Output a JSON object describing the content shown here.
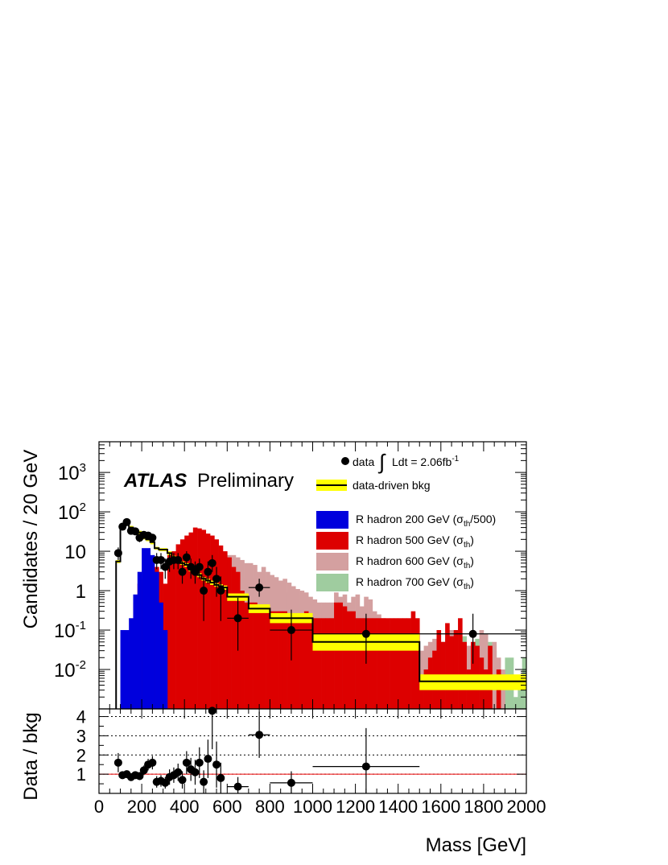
{
  "chart_data": [
    {
      "type": "histogram",
      "ylabel": "Candidates / 20 GeV",
      "yscale": "log",
      "ylim": [
        0.001,
        6000
      ],
      "xlim": [
        0,
        2000
      ],
      "yticks": [
        {
          "value": 0.01,
          "base": "10",
          "exp": "-2"
        },
        {
          "value": 0.1,
          "base": "10",
          "exp": "-1"
        },
        {
          "value": 1,
          "base": "1",
          "exp": ""
        },
        {
          "value": 10,
          "base": "10",
          "exp": ""
        },
        {
          "value": 100,
          "base": "10",
          "exp": "2"
        },
        {
          "value": 1000,
          "base": "10",
          "exp": "3"
        }
      ],
      "atlas_label": "ATLAS",
      "atlas_sublabel": "Preliminary",
      "legend": {
        "placement": "top-right",
        "data_label": "data",
        "lumi_prefix": "Ldt = 2.06fb",
        "lumi_exp": "-1",
        "bkg_label": "data-driven bkg",
        "signals": [
          {
            "pre": "R hadron 200 GeV (σ",
            "sub": "th",
            "post": "/500)"
          },
          {
            "pre": "R hadron 500 GeV (σ",
            "sub": "th",
            "post": ")"
          },
          {
            "pre": "R hadron 600 GeV (σ",
            "sub": "th",
            "post": ")"
          },
          {
            "pre": "R hadron 700 GeV (σ",
            "sub": "th",
            "post": ")"
          }
        ]
      },
      "colors": {
        "sig200": "#0000dd",
        "sig500": "#dd0000",
        "sig600": "#d4a0a0",
        "sig700": "#9fcc9f",
        "band": "#ffff00",
        "bkg": "#000000"
      },
      "bin_width": 20,
      "signal_edges_start": 100,
      "series": [
        {
          "name": "R hadron 700 GeV (σth)",
          "edges_start": 100,
          "values": [
            0.025,
            0.09,
            0.06,
            0.15,
            0.3,
            0.6,
            0.005,
            0.8,
            0.3,
            0.2,
            0.9,
            0.6,
            0.4,
            0.8,
            1.5,
            0.7,
            1.0,
            1.6,
            0.9,
            1.2,
            2.0,
            1.3,
            0.7,
            1.8,
            2.0,
            2.2,
            1.6,
            2.0,
            2.2,
            1.8,
            2.1,
            1.5,
            1.6,
            1.2,
            1.4,
            1.0,
            1.2,
            0.8,
            0.9,
            0.9,
            0.7,
            0.8,
            0.5,
            0.6,
            0.4,
            0.5,
            0.35,
            0.4,
            0.3,
            0.3,
            0.25,
            0.22,
            0.2,
            0.2,
            0.15,
            0.15,
            0.12,
            0.12,
            0.1,
            0.1,
            0.08,
            0.08,
            0.06,
            0.07,
            0.05,
            0.05,
            0.04,
            0.04,
            0.03,
            0.03,
            0.002,
            0.002,
            0.002,
            0.05,
            0.002,
            0.05,
            0.06,
            0.002,
            0.04,
            0.05,
            0.07,
            0.002,
            0.05,
            0.06,
            0.002,
            0.04,
            0.05,
            0.03,
            0.002,
            0.005,
            0.02,
            0.02,
            0.002,
            0.005,
            0.02,
            0.002
          ]
        },
        {
          "name": "R hadron 600 GeV (σth)",
          "edges_start": 100,
          "values": [
            0,
            0,
            0,
            0.1,
            0.5,
            1.5,
            0.01,
            3,
            0.5,
            0.8,
            1.5,
            0.5,
            0.5,
            2,
            3,
            1,
            2,
            4,
            3,
            6,
            8,
            7,
            8,
            8,
            9,
            8,
            8,
            7,
            6,
            5,
            5,
            4.5,
            3,
            4,
            3,
            2.5,
            2.2,
            1.8,
            2,
            1.6,
            1.3,
            1.1,
            1.0,
            0.9,
            0.7,
            0.6,
            0.5,
            0.5,
            0.5,
            0.5,
            0.9,
            0.7,
            0.8,
            0.5,
            0.7,
            0.8,
            0.4,
            0.7,
            0.6,
            0.3,
            0.25,
            0.2,
            0.15,
            0.12,
            0.1,
            0.08,
            0.07,
            0.06,
            0.05,
            0.04,
            0.03,
            0.04,
            0.05,
            0.06,
            0.07,
            0.05,
            0.04,
            0.1,
            0.06,
            0.05,
            0.05,
            0.04,
            0.03,
            0.03,
            0.1,
            0.08,
            0.04,
            0.05,
            0.02,
            0.01,
            0,
            0,
            0,
            0,
            0,
            0
          ]
        },
        {
          "name": "R hadron 500 GeV (σth)",
          "edges_start": 100,
          "values": [
            0,
            0,
            0.05,
            0.5,
            1.5,
            2,
            0.01,
            0.05,
            4,
            3,
            1.5,
            8,
            10,
            15,
            20,
            25,
            30,
            40,
            38,
            35,
            28,
            25,
            20,
            14,
            10,
            7,
            4,
            3,
            1,
            0.5,
            0.5,
            0.5,
            0.4,
            0.3,
            0.3,
            0.3,
            0.3,
            0.3,
            0.3,
            0.2,
            0.2,
            0.2,
            0.2,
            0.3,
            0.2,
            0.2,
            0.2,
            0.2,
            0.2,
            0.2,
            0.5,
            0.5,
            0.4,
            0.3,
            0.3,
            0.2,
            0.2,
            0.2,
            0.2,
            0.2,
            0.2,
            0.2,
            0.2,
            0.2,
            0.2,
            0.2,
            0.2,
            0.2,
            0.3,
            0.2,
            0.005,
            0.01,
            0.02,
            0.03,
            0.1,
            0.05,
            0.15,
            0.07,
            0.1,
            0.2,
            0.05,
            0.01,
            0.05,
            0.04,
            0.02,
            0.01,
            0.04,
            0.001,
            0.01,
            0,
            0,
            0,
            0,
            0,
            0,
            0
          ]
        },
        {
          "name": "R hadron 200 GeV (σth/500)",
          "edges_start": 100,
          "values": [
            0.1,
            0.1,
            0.2,
            0.8,
            3,
            12,
            12,
            8,
            3,
            0.5,
            0.1,
            0,
            0,
            0,
            0,
            0,
            0,
            0,
            0,
            0,
            0,
            0,
            0,
            0,
            0,
            0,
            0,
            0,
            0,
            0,
            0,
            0,
            0,
            0,
            0,
            0,
            0,
            0,
            0,
            0,
            0,
            0,
            0,
            0,
            0,
            0,
            0,
            0,
            0,
            0,
            0,
            0,
            0,
            0,
            0,
            0,
            0,
            0,
            0,
            0,
            0,
            0,
            0,
            0,
            0,
            0,
            0,
            0,
            0,
            0,
            0,
            0,
            0,
            0,
            0,
            0,
            0,
            0,
            0,
            0,
            0,
            0,
            0,
            0,
            0,
            0,
            0,
            0,
            0,
            0,
            0,
            0,
            0,
            0,
            0,
            0
          ]
        },
        {
          "name": "data-driven bkg",
          "edges": [
            80,
            100,
            120,
            140,
            160,
            180,
            200,
            220,
            240,
            260,
            280,
            300,
            320,
            340,
            360,
            380,
            400,
            420,
            440,
            460,
            480,
            500,
            520,
            540,
            560,
            580,
            600,
            700,
            800,
            1000,
            1500,
            2000
          ],
          "values": [
            5.5,
            40,
            50,
            40,
            35,
            30,
            22,
            20,
            17,
            12,
            11,
            11,
            9,
            7,
            6,
            5,
            4.5,
            3.5,
            3,
            2.5,
            2,
            1.8,
            1.6,
            1.4,
            1.3,
            1.2,
            0.7,
            0.35,
            0.2,
            0.05,
            0.005
          ],
          "band_low": [
            5,
            36,
            45,
            36,
            32,
            27,
            20,
            18,
            15,
            11,
            10,
            10,
            8,
            6.3,
            5.4,
            4.5,
            4.0,
            3.1,
            2.7,
            2.2,
            1.8,
            1.6,
            1.4,
            1.25,
            1.15,
            1.05,
            0.55,
            0.27,
            0.15,
            0.03,
            0.003
          ],
          "band_high": [
            6,
            44,
            55,
            44,
            38,
            33,
            24,
            22,
            19,
            13,
            12,
            12,
            10,
            7.7,
            6.6,
            5.5,
            5.0,
            3.9,
            3.3,
            2.8,
            2.2,
            2.0,
            1.8,
            1.55,
            1.45,
            1.35,
            0.85,
            0.45,
            0.27,
            0.08,
            0.0075
          ]
        },
        {
          "name": "data",
          "points": [
            {
              "x": 90,
              "y": 9,
              "yerr_lo": 3,
              "yerr_hi": 3.5
            },
            {
              "x": 110,
              "y": 42,
              "yerr_lo": 6,
              "yerr_hi": 7
            },
            {
              "x": 130,
              "y": 55,
              "yerr_lo": 7,
              "yerr_hi": 8
            },
            {
              "x": 150,
              "y": 33,
              "yerr_lo": 6,
              "yerr_hi": 6
            },
            {
              "x": 170,
              "y": 32,
              "yerr_lo": 6,
              "yerr_hi": 6
            },
            {
              "x": 190,
              "y": 22,
              "yerr_lo": 5,
              "yerr_hi": 5
            },
            {
              "x": 210,
              "y": 26,
              "yerr_lo": 5,
              "yerr_hi": 5
            },
            {
              "x": 230,
              "y": 25,
              "yerr_lo": 5,
              "yerr_hi": 5
            },
            {
              "x": 250,
              "y": 22,
              "yerr_lo": 5,
              "yerr_hi": 5
            },
            {
              "x": 270,
              "y": 6,
              "yerr_lo": 2.5,
              "yerr_hi": 3
            },
            {
              "x": 290,
              "y": 6,
              "yerr_lo": 2.5,
              "yerr_hi": 3
            },
            {
              "x": 310,
              "y": 4,
              "yerr_lo": 2,
              "yerr_hi": 2.5
            },
            {
              "x": 330,
              "y": 5.5,
              "yerr_lo": 2.5,
              "yerr_hi": 3
            },
            {
              "x": 350,
              "y": 6,
              "yerr_lo": 2.5,
              "yerr_hi": 3
            },
            {
              "x": 370,
              "y": 6,
              "yerr_lo": 2.5,
              "yerr_hi": 3
            },
            {
              "x": 390,
              "y": 3,
              "yerr_lo": 1.5,
              "yerr_hi": 2.5
            },
            {
              "x": 410,
              "y": 7,
              "yerr_lo": 2.5,
              "yerr_hi": 3
            },
            {
              "x": 430,
              "y": 4,
              "yerr_lo": 2,
              "yerr_hi": 2.5
            },
            {
              "x": 450,
              "y": 3,
              "yerr_lo": 1.5,
              "yerr_hi": 2.5
            },
            {
              "x": 470,
              "y": 4,
              "yerr_lo": 2,
              "yerr_hi": 2.5
            },
            {
              "x": 490,
              "y": 1,
              "yerr_lo": 0.83,
              "yerr_hi": 1.3
            },
            {
              "x": 510,
              "y": 3,
              "yerr_lo": 1.5,
              "yerr_hi": 2.5
            },
            {
              "x": 530,
              "y": 5,
              "yerr_lo": 2,
              "yerr_hi": 3
            },
            {
              "x": 550,
              "y": 2,
              "yerr_lo": 1.3,
              "yerr_hi": 2
            },
            {
              "x": 570,
              "y": 1,
              "yerr_lo": 0.83,
              "yerr_hi": 1.3
            },
            {
              "x": 650,
              "y": 0.2,
              "xerr": 50,
              "yerr_lo": 0.17,
              "yerr_hi": 0.46
            },
            {
              "x": 750,
              "y": 1.2,
              "xerr": 50,
              "yerr_lo": 0.5,
              "yerr_hi": 0.8
            },
            {
              "x": 900,
              "y": 0.1,
              "xerr": 100,
              "yerr_lo": 0.083,
              "yerr_hi": 0.23
            },
            {
              "x": 1250,
              "y": 0.08,
              "xerr": 250,
              "yerr_lo": 0.066,
              "yerr_hi": 0.18
            },
            {
              "x": 1750,
              "y": 0.08,
              "xerr": 250,
              "yerr_lo": 0.066,
              "yerr_hi": 0.18
            }
          ]
        }
      ]
    },
    {
      "type": "scatter",
      "ylabel": "Data / bkg",
      "xlabel": "Mass [GeV]",
      "xlim": [
        0,
        2000
      ],
      "ylim": [
        0,
        4.4
      ],
      "xticks": [
        "0",
        "200",
        "400",
        "600",
        "800",
        "1000",
        "1200",
        "1400",
        "1600",
        "1800",
        "2000"
      ],
      "yticks": [
        "1",
        "2",
        "3",
        "4"
      ],
      "gridlines": [
        1,
        2,
        3,
        4
      ],
      "reference_line": 1,
      "reference_color": "#ee0000",
      "points": [
        {
          "x": 90,
          "y": 1.6,
          "err": 0.5
        },
        {
          "x": 110,
          "y": 0.95,
          "err": 0.17
        },
        {
          "x": 130,
          "y": 1.0,
          "err": 0.15
        },
        {
          "x": 150,
          "y": 0.85,
          "err": 0.16
        },
        {
          "x": 170,
          "y": 0.95,
          "err": 0.18
        },
        {
          "x": 190,
          "y": 0.9,
          "err": 0.2
        },
        {
          "x": 210,
          "y": 1.2,
          "err": 0.25
        },
        {
          "x": 230,
          "y": 1.5,
          "err": 0.3
        },
        {
          "x": 250,
          "y": 1.6,
          "err": 0.35
        },
        {
          "x": 270,
          "y": 0.6,
          "err": 0.3
        },
        {
          "x": 290,
          "y": 0.65,
          "err": 0.3
        },
        {
          "x": 310,
          "y": 0.55,
          "err": 0.3
        },
        {
          "x": 330,
          "y": 0.85,
          "err": 0.4
        },
        {
          "x": 350,
          "y": 0.95,
          "err": 0.4
        },
        {
          "x": 370,
          "y": 1.1,
          "err": 0.45
        },
        {
          "x": 390,
          "y": 0.7,
          "err": 0.45
        },
        {
          "x": 410,
          "y": 1.6,
          "err": 0.6
        },
        {
          "x": 430,
          "y": 1.25,
          "err": 0.6
        },
        {
          "x": 450,
          "y": 1.1,
          "err": 0.65
        },
        {
          "x": 470,
          "y": 1.6,
          "err": 0.8
        },
        {
          "x": 490,
          "y": 0.6,
          "err": 0.6
        },
        {
          "x": 510,
          "y": 1.8,
          "err": 1.0
        },
        {
          "x": 530,
          "y": 4.3,
          "err": 2.0
        },
        {
          "x": 550,
          "y": 1.5,
          "err": 1.2
        },
        {
          "x": 570,
          "y": 0.8,
          "err": 0.8
        },
        {
          "x": 650,
          "y": 0.35,
          "xerr": 50,
          "err": 0.5
        },
        {
          "x": 750,
          "y": 3.05,
          "xerr": 50,
          "err": 1.2
        },
        {
          "x": 900,
          "y": 0.55,
          "xerr": 100,
          "err": 0.6
        },
        {
          "x": 1250,
          "y": 1.4,
          "xerr": 250,
          "err": 2.0
        }
      ]
    }
  ]
}
